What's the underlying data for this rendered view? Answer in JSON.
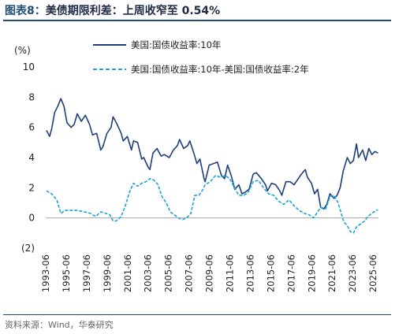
{
  "title": {
    "figure": "图表8：",
    "text": "美债期限利差：上周收窄至 0.54%"
  },
  "source": "资料来源：Wind，华泰研究",
  "chart_data": {
    "type": "line",
    "ylabel": "(%)",
    "ylim": [
      -2,
      10
    ],
    "yticks": [
      "10",
      "8",
      "6",
      "4",
      "2",
      "0",
      "(2)"
    ],
    "ytick_values": [
      10,
      8,
      6,
      4,
      2,
      0,
      -2
    ],
    "xlim": [
      1993.42,
      2025.95
    ],
    "xticks": [
      "1993-06",
      "1995-06",
      "1997-06",
      "1999-06",
      "2001-06",
      "2003-06",
      "2005-06",
      "2007-06",
      "2009-06",
      "2011-06",
      "2013-06",
      "2015-06",
      "2017-06",
      "2019-06",
      "2021-06",
      "2023-06",
      "2025-06"
    ],
    "xtick_values": [
      1993.42,
      1995.42,
      1997.42,
      1999.42,
      2001.42,
      2003.42,
      2005.42,
      2007.42,
      2009.42,
      2011.42,
      2013.42,
      2015.42,
      2017.42,
      2019.42,
      2021.42,
      2023.42,
      2025.42
    ],
    "series": [
      {
        "name": "美国:国债收益率:10年",
        "color": "#1f3f7a",
        "style": "solid",
        "x": [
          1993.5,
          1993.8,
          1994.0,
          1994.3,
          1994.6,
          1994.9,
          1995.2,
          1995.5,
          1995.9,
          1996.2,
          1996.5,
          1996.9,
          1997.3,
          1997.7,
          1998.0,
          1998.4,
          1998.8,
          1999.0,
          1999.4,
          1999.8,
          2000.0,
          2000.4,
          2000.8,
          2001.0,
          2001.4,
          2001.8,
          2002.0,
          2002.4,
          2002.8,
          2003.0,
          2003.4,
          2003.6,
          2003.9,
          2004.3,
          2004.7,
          2005.0,
          2005.5,
          2005.9,
          2006.3,
          2006.5,
          2006.9,
          2007.3,
          2007.5,
          2007.9,
          2008.2,
          2008.5,
          2008.9,
          2009.0,
          2009.4,
          2009.8,
          2010.2,
          2010.6,
          2010.9,
          2011.2,
          2011.6,
          2011.9,
          2012.3,
          2012.6,
          2012.9,
          2013.3,
          2013.7,
          2014.0,
          2014.5,
          2014.9,
          2015.1,
          2015.5,
          2015.9,
          2016.3,
          2016.5,
          2016.9,
          2017.3,
          2017.7,
          2018.0,
          2018.4,
          2018.8,
          2019.0,
          2019.4,
          2019.7,
          2020.0,
          2020.3,
          2020.6,
          2020.9,
          2021.2,
          2021.6,
          2021.9,
          2022.2,
          2022.5,
          2022.9,
          2023.2,
          2023.5,
          2023.8,
          2024.0,
          2024.4,
          2024.7,
          2025.0,
          2025.3,
          2025.6,
          2025.9
        ],
        "values": [
          5.8,
          5.4,
          5.9,
          7.0,
          7.4,
          7.9,
          7.4,
          6.3,
          6.0,
          6.2,
          6.9,
          6.4,
          6.8,
          6.2,
          5.5,
          5.6,
          4.5,
          4.7,
          5.6,
          6.0,
          6.7,
          6.2,
          5.6,
          5.1,
          5.4,
          4.5,
          5.1,
          5.0,
          3.9,
          4.0,
          3.4,
          3.2,
          4.3,
          4.6,
          4.1,
          4.2,
          4.0,
          4.5,
          4.8,
          5.2,
          4.6,
          4.8,
          5.1,
          4.3,
          3.6,
          3.9,
          2.6,
          2.4,
          3.5,
          3.6,
          3.7,
          2.8,
          2.6,
          3.5,
          2.7,
          1.9,
          2.2,
          1.6,
          1.7,
          1.9,
          2.9,
          3.0,
          2.6,
          2.2,
          1.8,
          2.3,
          2.2,
          1.8,
          1.5,
          2.4,
          2.4,
          2.2,
          2.5,
          2.9,
          3.2,
          2.7,
          2.3,
          1.6,
          1.9,
          0.7,
          0.6,
          0.9,
          1.6,
          1.3,
          1.5,
          2.0,
          3.1,
          4.0,
          3.6,
          3.8,
          4.9,
          4.0,
          4.5,
          3.8,
          4.6,
          4.2,
          4.4,
          4.3
        ]
      },
      {
        "name": "美国:国债收益率:10年-美国:国债收益率:2年",
        "color": "#1aa3dc",
        "style": "dashed",
        "x": [
          1993.5,
          1994.0,
          1994.5,
          1994.9,
          1995.3,
          1995.8,
          1996.5,
          1997.2,
          1997.8,
          1998.3,
          1998.8,
          1999.3,
          1999.7,
          2000.0,
          2000.3,
          2000.8,
          2001.2,
          2001.6,
          2002.0,
          2002.4,
          2002.8,
          2003.2,
          2003.6,
          2004.0,
          2004.4,
          2004.8,
          2005.2,
          2005.6,
          2006.0,
          2006.4,
          2006.8,
          2007.2,
          2007.6,
          2008.0,
          2008.4,
          2008.8,
          2009.0,
          2009.5,
          2010.0,
          2010.5,
          2011.0,
          2011.4,
          2011.8,
          2012.3,
          2012.8,
          2013.2,
          2013.7,
          2014.2,
          2014.7,
          2015.2,
          2015.7,
          2016.2,
          2016.7,
          2017.2,
          2017.7,
          2018.2,
          2018.7,
          2019.2,
          2019.6,
          2019.9,
          2020.3,
          2020.8,
          2021.2,
          2021.6,
          2022.0,
          2022.4,
          2022.6,
          2022.9,
          2023.2,
          2023.5,
          2023.8,
          2024.2,
          2024.6,
          2024.9,
          2025.3,
          2025.7,
          2025.9
        ],
        "values": [
          1.8,
          1.6,
          1.2,
          0.3,
          0.5,
          0.5,
          0.5,
          0.4,
          0.3,
          0.1,
          0.4,
          0.3,
          0.2,
          -0.2,
          -0.2,
          0.1,
          0.8,
          1.7,
          2.3,
          2.1,
          2.3,
          2.4,
          2.6,
          2.5,
          2.2,
          1.4,
          1.0,
          0.4,
          0.2,
          0.0,
          -0.1,
          0.0,
          0.3,
          1.5,
          1.5,
          1.9,
          2.2,
          2.4,
          2.8,
          2.7,
          2.8,
          2.6,
          2.1,
          1.5,
          1.5,
          1.7,
          2.4,
          2.5,
          2.0,
          1.6,
          1.5,
          1.1,
          0.9,
          1.2,
          0.8,
          0.5,
          0.3,
          0.2,
          0.0,
          0.3,
          0.7,
          0.6,
          1.4,
          1.5,
          1.0,
          0.1,
          -0.3,
          -0.5,
          -0.9,
          -1.0,
          -0.6,
          -0.4,
          -0.2,
          0.1,
          0.3,
          0.5,
          0.54
        ]
      }
    ],
    "legend": "top-right"
  }
}
